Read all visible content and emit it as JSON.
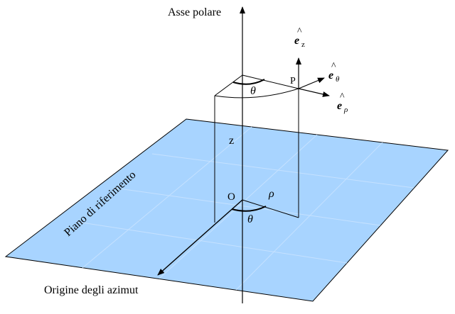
{
  "labels": {
    "polar_axis": "Asse polare",
    "reference_plane": "Piano di riferimento",
    "azimuth_origin": "Origine degli azimut",
    "origin": "O",
    "point": "P",
    "height": "z",
    "radius": "ρ",
    "angle_top": "θ",
    "angle_bottom": "θ",
    "unit_vector_symbol": "e",
    "unit_vector_hat": "^",
    "sub_z": "z",
    "sub_theta": "θ",
    "sub_rho": "ρ"
  },
  "colors": {
    "plane_fill": "#a8d4ff",
    "plane_edge": "#000000",
    "grid": "#c9e3ff",
    "lines": "#000000"
  }
}
